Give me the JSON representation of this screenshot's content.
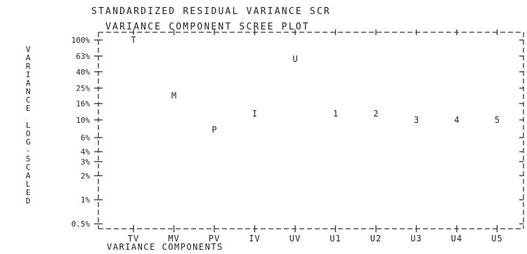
{
  "chart_data": {
    "type": "scatter",
    "title": "STANDARDIZED RESIDUAL VARIANCE SCR",
    "subtitle": "VARIANCE COMPONENT SCREE PLOT",
    "ylabel": "VARIANCE LOG-SCALED",
    "xlabel": "VARIANCE COMPONENTS",
    "y_scale": "log",
    "ylim_percent": [
      0.5,
      100
    ],
    "y_ticks": [
      {
        "value": 100,
        "label": "100%"
      },
      {
        "value": 63,
        "label": "63%"
      },
      {
        "value": 40,
        "label": "40%"
      },
      {
        "value": 25,
        "label": "25%"
      },
      {
        "value": 16,
        "label": "16%"
      },
      {
        "value": 10,
        "label": "10%"
      },
      {
        "value": 6,
        "label": "6%"
      },
      {
        "value": 4,
        "label": "4%"
      },
      {
        "value": 3,
        "label": "3%"
      },
      {
        "value": 2,
        "label": "2%"
      },
      {
        "value": 1,
        "label": "1%"
      },
      {
        "value": 0.5,
        "label": "0.5%"
      }
    ],
    "categories": [
      "TV",
      "MV",
      "PV",
      "IV",
      "UV",
      "U1",
      "U2",
      "U3",
      "U4",
      "U5"
    ],
    "points": [
      {
        "category": "TV",
        "marker": "T",
        "value": 100
      },
      {
        "category": "MV",
        "marker": "M",
        "value": 20
      },
      {
        "category": "PV",
        "marker": "P",
        "value": 7.5
      },
      {
        "category": "IV",
        "marker": "I",
        "value": 12
      },
      {
        "category": "UV",
        "marker": "U",
        "value": 58
      },
      {
        "category": "U1",
        "marker": "1",
        "value": 12
      },
      {
        "category": "U2",
        "marker": "2",
        "value": 12
      },
      {
        "category": "U3",
        "marker": "3",
        "value": 10
      },
      {
        "category": "U4",
        "marker": "4",
        "value": 10
      },
      {
        "category": "U5",
        "marker": "5",
        "value": 10
      }
    ]
  }
}
